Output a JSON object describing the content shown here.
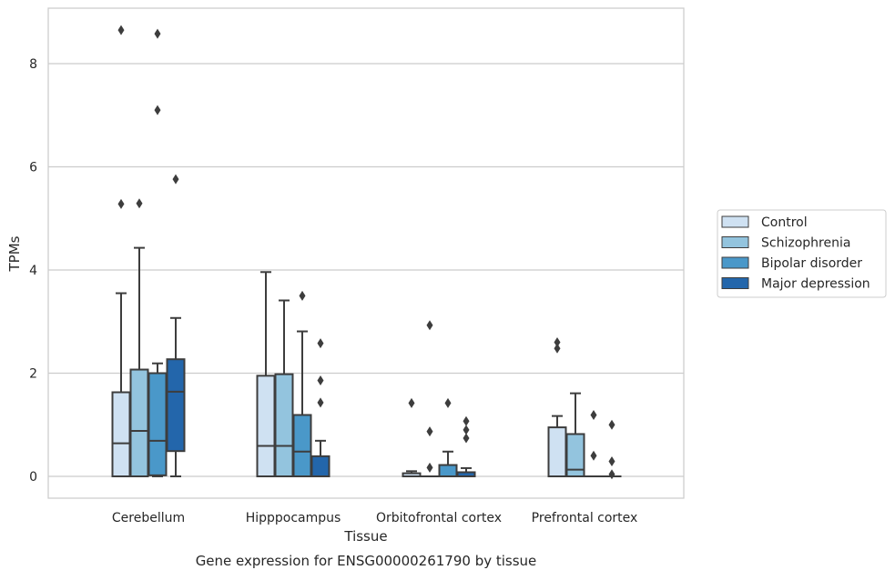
{
  "caption": "Gene expression for ENSG00000261790 by tissue",
  "chart_data": {
    "type": "box",
    "xlabel": "Tissue",
    "ylabel": "TPMs",
    "ylim": [
      -0.4,
      9.1
    ],
    "yticks": [
      0,
      2,
      4,
      6,
      8
    ],
    "grid": "horizontal",
    "legend_position": "right",
    "categories": [
      "Cerebellum",
      "Hipppocampus",
      "Orbitofrontal cortex",
      "Prefrontal cortex"
    ],
    "series": [
      {
        "name": "Control",
        "color": "#cfe1f2",
        "boxes": [
          {
            "q1": 0,
            "median": 0.64,
            "q3": 1.63,
            "whisker_low": 0,
            "whisker_high": 3.55,
            "outliers": [
              5.28,
              8.65
            ]
          },
          {
            "q1": 0,
            "median": 0.59,
            "q3": 1.95,
            "whisker_low": 0,
            "whisker_high": 3.96,
            "outliers": []
          },
          {
            "q1": 0,
            "median": 0,
            "q3": 0.06,
            "whisker_low": 0,
            "whisker_high": 0.1,
            "outliers": [
              1.42
            ]
          },
          {
            "q1": 0,
            "median": 0,
            "q3": 0.95,
            "whisker_low": 0,
            "whisker_high": 1.17,
            "outliers": [
              2.48,
              2.6
            ]
          }
        ]
      },
      {
        "name": "Schizophrenia",
        "color": "#93c4de",
        "boxes": [
          {
            "q1": 0,
            "median": 0.88,
            "q3": 2.07,
            "whisker_low": 0,
            "whisker_high": 4.43,
            "outliers": [
              5.29
            ]
          },
          {
            "q1": 0,
            "median": 0.59,
            "q3": 1.98,
            "whisker_low": 0,
            "whisker_high": 3.41,
            "outliers": []
          },
          {
            "q1": 0,
            "median": 0,
            "q3": 0,
            "whisker_low": 0,
            "whisker_high": 0,
            "outliers": [
              0.17,
              0.87,
              2.93
            ]
          },
          {
            "q1": 0,
            "median": 0.13,
            "q3": 0.82,
            "whisker_low": 0,
            "whisker_high": 1.61,
            "outliers": []
          }
        ]
      },
      {
        "name": "Bipolar disorder",
        "color": "#4a98c9",
        "boxes": [
          {
            "q1": 0.02,
            "median": 0.69,
            "q3": 2.0,
            "whisker_low": 0,
            "whisker_high": 2.19,
            "outliers": [
              7.1,
              8.58
            ]
          },
          {
            "q1": 0,
            "median": 0.48,
            "q3": 1.19,
            "whisker_low": 0,
            "whisker_high": 2.81,
            "outliers": [
              3.5
            ]
          },
          {
            "q1": 0,
            "median": 0,
            "q3": 0.22,
            "whisker_low": 0,
            "whisker_high": 0.48,
            "outliers": [
              1.42
            ]
          },
          {
            "q1": 0,
            "median": 0,
            "q3": 0,
            "whisker_low": 0,
            "whisker_high": 0,
            "outliers": [
              0.4,
              1.19
            ]
          }
        ]
      },
      {
        "name": "Major depression",
        "color": "#2366ab",
        "boxes": [
          {
            "q1": 0.49,
            "median": 1.64,
            "q3": 2.27,
            "whisker_low": 0,
            "whisker_high": 3.07,
            "outliers": [
              5.76
            ]
          },
          {
            "q1": 0,
            "median": 0,
            "q3": 0.39,
            "whisker_low": 0,
            "whisker_high": 0.69,
            "outliers": [
              1.43,
              1.86,
              2.58
            ]
          },
          {
            "q1": 0,
            "median": 0,
            "q3": 0.08,
            "whisker_low": 0,
            "whisker_high": 0.16,
            "outliers": [
              0.74,
              0.9,
              1.07
            ]
          },
          {
            "q1": 0,
            "median": 0,
            "q3": 0,
            "whisker_low": 0,
            "whisker_high": 0,
            "outliers": [
              0.04,
              0.29,
              1.0
            ]
          }
        ]
      }
    ]
  }
}
